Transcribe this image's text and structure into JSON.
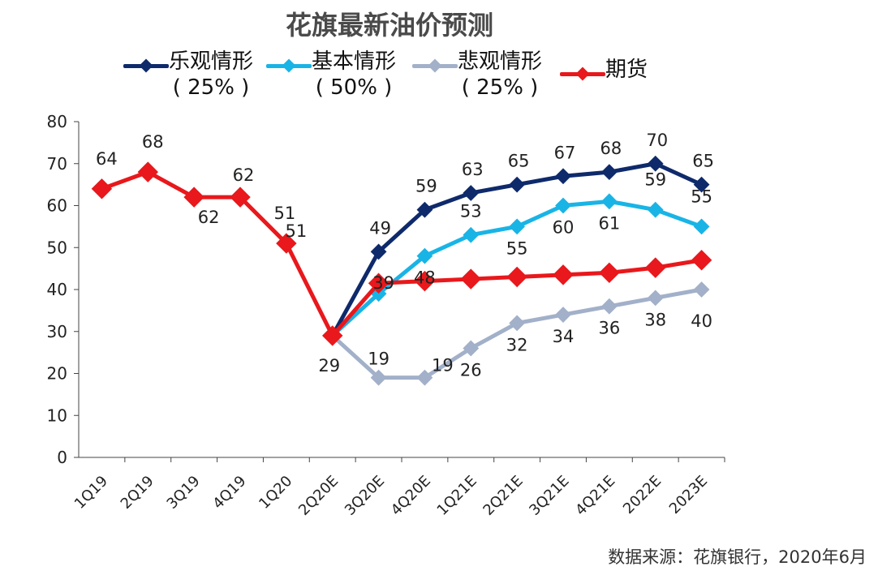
{
  "chart_data": {
    "type": "line",
    "title": "花旗最新油价预测",
    "categories": [
      "1Q19",
      "2Q19",
      "3Q19",
      "4Q19",
      "1Q20",
      "2Q20E",
      "3Q20E",
      "4Q20E",
      "1Q21E",
      "2Q21E",
      "3Q21E",
      "4Q21E",
      "2022E",
      "2023E"
    ],
    "ylim": [
      0,
      80
    ],
    "yticks": [
      0,
      10,
      20,
      30,
      40,
      50,
      60,
      70,
      80
    ],
    "grid": false,
    "legend_position": "top",
    "series": [
      {
        "name": "乐观情形",
        "sub": "( 25% )",
        "color": "#0e2a6b",
        "values": [
          null,
          null,
          null,
          null,
          null,
          29,
          49,
          59,
          63,
          65,
          67,
          68,
          70,
          65
        ],
        "labels": [
          null,
          null,
          null,
          null,
          null,
          null,
          "49",
          "59",
          "63",
          "65",
          "67",
          "68",
          "70",
          "65"
        ]
      },
      {
        "name": "基本情形",
        "sub": "( 50% )",
        "color": "#19b4e6",
        "values": [
          null,
          null,
          null,
          null,
          null,
          29,
          39,
          48,
          53,
          55,
          60,
          61,
          59,
          55
        ],
        "labels": [
          null,
          null,
          null,
          null,
          null,
          null,
          "39",
          "48",
          "53",
          "55",
          "60",
          "61",
          "59",
          "55"
        ]
      },
      {
        "name": "悲观情形",
        "sub": "( 25% )",
        "color": "#a2b0c9",
        "values": [
          null,
          null,
          null,
          null,
          null,
          29,
          19,
          19,
          26,
          32,
          34,
          36,
          38,
          40
        ],
        "labels": [
          null,
          null,
          null,
          null,
          null,
          null,
          "19",
          "19",
          "26",
          "32",
          "34",
          "36",
          "38",
          "40"
        ]
      },
      {
        "name": "期货",
        "sub": "",
        "color": "#e8181c",
        "values": [
          64,
          68,
          62,
          62,
          51,
          29,
          41.5,
          42,
          42.5,
          43,
          43.5,
          44,
          45.2,
          47
        ],
        "labels": [
          "64",
          "68",
          "62",
          "62",
          "51",
          "29",
          null,
          null,
          null,
          null,
          null,
          null,
          null,
          null
        ]
      }
    ],
    "extra_labels": [
      {
        "text": "51",
        "category": "1Q20"
      }
    ]
  },
  "source": "数据来源：花旗银行，2020年6月"
}
